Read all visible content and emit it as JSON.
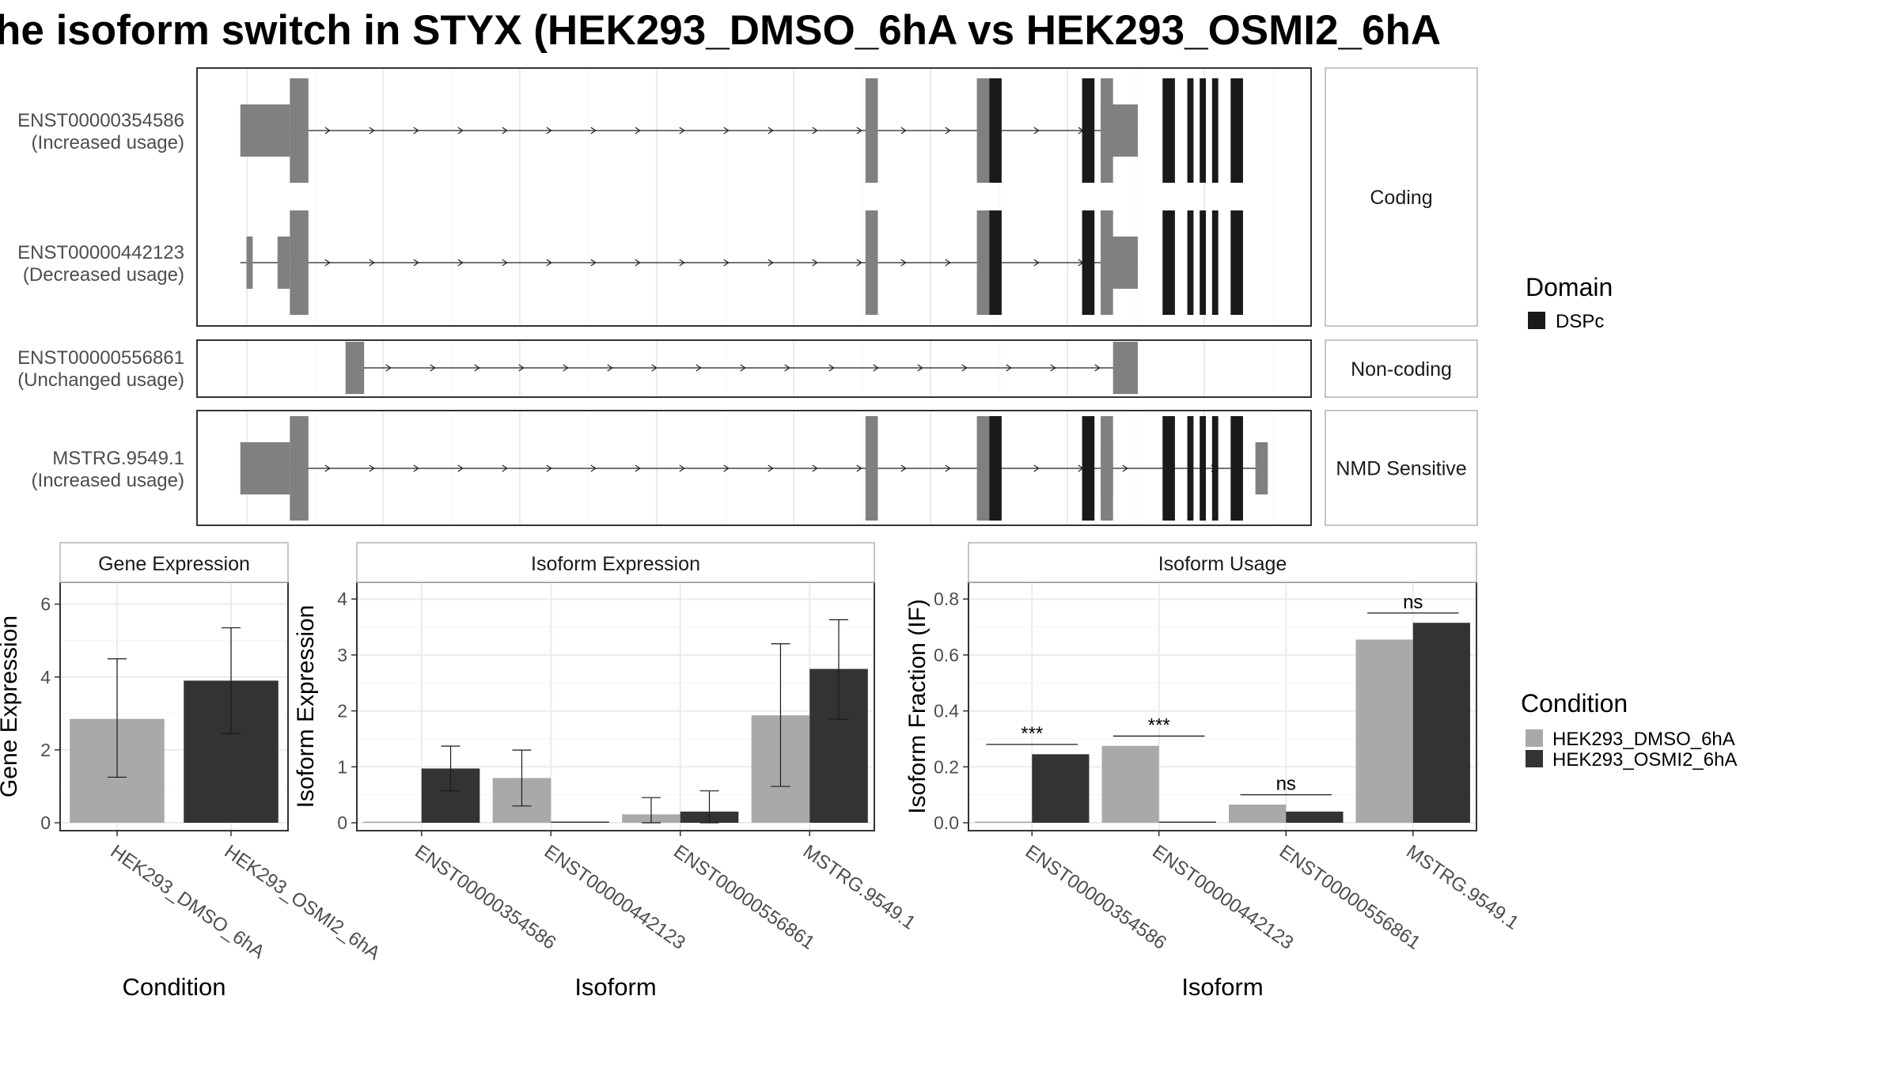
{
  "title": "he isoform switch in STYX (HEK293_DMSO_6hA vs HEK293_OSMI2_6hA",
  "colors": {
    "dmso": "#a9a9a9",
    "osmi": "#333333",
    "exon": "#808080",
    "domain": "#1a1a1a",
    "panel_border": "#333333",
    "strip_border": "#b3b3b3",
    "grid": "#ebebeb"
  },
  "structure_panels": [
    {
      "label": "Coding",
      "tracks": [
        0,
        1
      ]
    },
    {
      "label": "Non-coding",
      "tracks": [
        2
      ]
    },
    {
      "label": "NMD Sensitive",
      "tracks": [
        3
      ]
    }
  ],
  "tracks": [
    {
      "id": "ENST00000354586",
      "status": "(Increased usage)",
      "line": [
        7,
        152
      ],
      "utr": [
        [
          7,
          15
        ],
        [
          146,
          152
        ]
      ],
      "cds": [
        [
          15,
          18
        ],
        [
          108,
          110
        ],
        [
          126,
          128
        ],
        [
          146,
          148
        ]
      ],
      "domain": [
        [
          128,
          130
        ],
        [
          143,
          145
        ],
        [
          156,
          158
        ],
        [
          160,
          161
        ],
        [
          162,
          163
        ],
        [
          164,
          165
        ],
        [
          167,
          169
        ]
      ]
    },
    {
      "id": "ENST00000442123",
      "status": "(Decreased usage)",
      "line": [
        7,
        152
      ],
      "utr": [
        [
          8,
          9
        ],
        [
          13,
          15
        ],
        [
          146,
          152
        ]
      ],
      "cds": [
        [
          15,
          18
        ],
        [
          108,
          110
        ],
        [
          126,
          128
        ],
        [
          146,
          148
        ]
      ],
      "domain": [
        [
          128,
          130
        ],
        [
          143,
          145
        ],
        [
          156,
          158
        ],
        [
          160,
          161
        ],
        [
          162,
          163
        ],
        [
          164,
          165
        ],
        [
          167,
          169
        ]
      ]
    },
    {
      "id": "ENST00000556861",
      "status": "(Unchanged usage)",
      "line": [
        24,
        152
      ],
      "utr": [
        [
          24,
          27
        ],
        [
          148,
          152
        ]
      ],
      "cds": [],
      "domain": []
    },
    {
      "id": "MSTRG.9549.1",
      "status": "(Increased usage)",
      "line": [
        7,
        173
      ],
      "utr": [
        [
          7,
          15
        ],
        [
          146,
          148
        ],
        [
          171,
          173
        ]
      ],
      "cds": [
        [
          15,
          18
        ],
        [
          108,
          110
        ],
        [
          126,
          128
        ],
        [
          146,
          148
        ]
      ],
      "domain": [
        [
          128,
          130
        ],
        [
          143,
          145
        ],
        [
          156,
          158
        ],
        [
          160,
          161
        ],
        [
          162,
          163
        ],
        [
          164,
          165
        ],
        [
          167,
          169
        ]
      ]
    }
  ],
  "legend_domain": {
    "title": "Domain",
    "items": [
      {
        "label": "DSPc",
        "color": "#1a1a1a"
      }
    ]
  },
  "legend_condition": {
    "title": "Condition",
    "items": [
      {
        "label": "HEK293_DMSO_6hA",
        "color": "#a9a9a9"
      },
      {
        "label": "HEK293_OSMI2_6hA",
        "color": "#333333"
      }
    ]
  },
  "chart_data": [
    {
      "type": "bar",
      "title": "Gene Expression",
      "xlabel": "Condition",
      "ylabel": "Gene Expression",
      "ylim": [
        0,
        6.6
      ],
      "yticks": [
        0,
        2,
        4,
        6
      ],
      "categories": [
        "HEK293_DMSO_6hA",
        "HEK293_OSMI2_6hA"
      ],
      "series": [
        {
          "name": "HEK293_DMSO_6hA",
          "values": [
            2.85,
            null
          ],
          "err_lo": [
            1.25,
            null
          ],
          "err_hi": [
            4.5,
            null
          ]
        },
        {
          "name": "HEK293_OSMI2_6hA",
          "values": [
            null,
            3.9
          ],
          "err_lo": [
            null,
            2.45
          ],
          "err_hi": [
            null,
            5.35
          ]
        }
      ]
    },
    {
      "type": "bar",
      "title": "Isoform Expression",
      "xlabel": "Isoform",
      "ylabel": "Isoform Expression",
      "ylim": [
        0,
        4.3
      ],
      "yticks": [
        0,
        1,
        2,
        3,
        4
      ],
      "categories": [
        "ENST00000354586",
        "ENST00000442123",
        "ENST00000556861",
        "MSTRG.9549.1"
      ],
      "series": [
        {
          "name": "HEK293_DMSO_6hA",
          "values": [
            0,
            0.8,
            0.15,
            1.92
          ],
          "err_lo": [
            null,
            0.3,
            0.0,
            0.65
          ],
          "err_hi": [
            null,
            1.3,
            0.45,
            3.2
          ]
        },
        {
          "name": "HEK293_OSMI2_6hA",
          "values": [
            0.97,
            0,
            0.2,
            2.75
          ],
          "err_lo": [
            0.57,
            null,
            0.0,
            1.85
          ],
          "err_hi": [
            1.37,
            null,
            0.57,
            3.63
          ]
        }
      ]
    },
    {
      "type": "bar",
      "title": "Isoform Usage",
      "xlabel": "Isoform",
      "ylabel": "Isoform Fraction (IF)",
      "ylim": [
        0,
        0.86
      ],
      "yticks": [
        "0.0",
        "0.2",
        "0.4",
        "0.6",
        "0.8"
      ],
      "categories": [
        "ENST00000354586",
        "ENST00000442123",
        "ENST00000556861",
        "MSTRG.9549.1"
      ],
      "series": [
        {
          "name": "HEK293_DMSO_6hA",
          "values": [
            0,
            0.275,
            0.065,
            0.655
          ]
        },
        {
          "name": "HEK293_OSMI2_6hA",
          "values": [
            0.245,
            0,
            0.04,
            0.715
          ]
        }
      ],
      "annotations": [
        {
          "category": 0,
          "label": "***",
          "y": 0.28
        },
        {
          "category": 1,
          "label": "***",
          "y": 0.31
        },
        {
          "category": 2,
          "label": "ns",
          "y": 0.1
        },
        {
          "category": 3,
          "label": "ns",
          "y": 0.75
        }
      ]
    }
  ]
}
